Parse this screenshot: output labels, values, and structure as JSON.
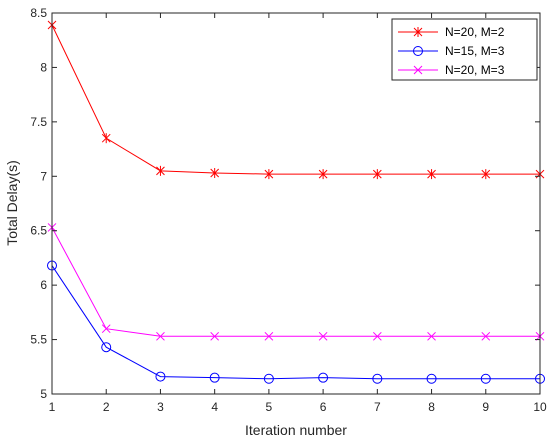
{
  "chart_data": {
    "type": "line",
    "title": "",
    "xlabel": "Iteration number",
    "ylabel": "Total Delay(s)",
    "x": [
      1,
      2,
      3,
      4,
      5,
      6,
      7,
      8,
      9,
      10
    ],
    "xlim": [
      1,
      10
    ],
    "ylim": [
      5,
      8.5
    ],
    "xticks": [
      "1",
      "2",
      "3",
      "4",
      "5",
      "6",
      "7",
      "8",
      "9",
      "10"
    ],
    "yticks": [
      "5",
      "5.5",
      "6",
      "6.5",
      "7",
      "7.5",
      "8",
      "8.5"
    ],
    "grid": false,
    "legend_position": "top-right",
    "series": [
      {
        "name": "N=20, M=2",
        "color": "#ff0000",
        "marker": "asterisk",
        "values": [
          8.39,
          7.35,
          7.05,
          7.03,
          7.02,
          7.02,
          7.02,
          7.02,
          7.02,
          7.02
        ]
      },
      {
        "name": "N=15, M=3",
        "color": "#0000ff",
        "marker": "circle",
        "values": [
          6.18,
          5.43,
          5.16,
          5.15,
          5.14,
          5.15,
          5.14,
          5.14,
          5.14,
          5.14
        ]
      },
      {
        "name": "N=20, M=3",
        "color": "#ff00ff",
        "marker": "x",
        "values": [
          6.53,
          5.6,
          5.53,
          5.53,
          5.53,
          5.53,
          5.53,
          5.53,
          5.53,
          5.53
        ]
      }
    ]
  }
}
